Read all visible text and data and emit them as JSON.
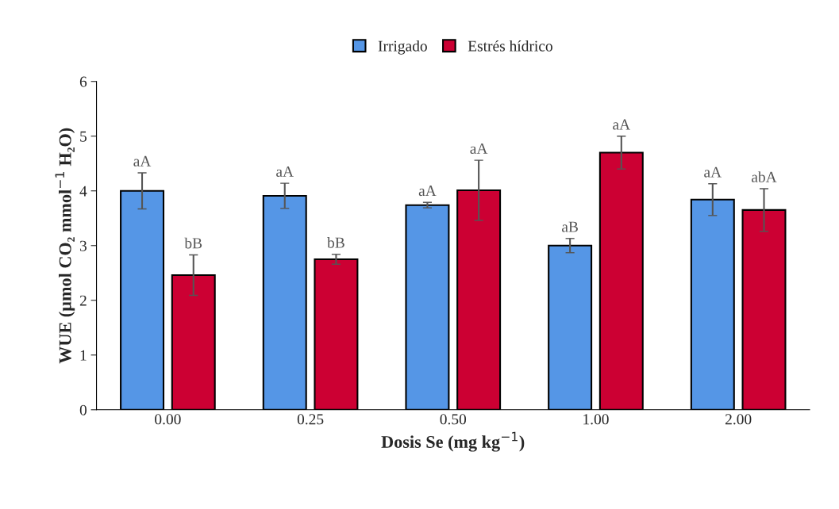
{
  "chart_data": {
    "type": "bar",
    "categories": [
      "0.00",
      "0.25",
      "0.50",
      "1.00",
      "2.00"
    ],
    "series": [
      {
        "name": "Irrigado",
        "color": "#5596e6",
        "values": [
          4.0,
          3.91,
          3.74,
          3.0,
          3.84
        ],
        "value_labels": [
          "aA",
          "aA",
          "aA",
          "aB",
          "aA"
        ],
        "errors": [
          0.33,
          0.23,
          0.05,
          0.13,
          0.29
        ]
      },
      {
        "name": "Estrés hídrico",
        "color": "#cc0033",
        "values": [
          2.46,
          2.75,
          4.01,
          4.7,
          3.65
        ],
        "value_labels": [
          "bB",
          "bB",
          "aA",
          "aA",
          "abA"
        ],
        "errors": [
          0.37,
          0.09,
          0.55,
          0.3,
          0.39
        ]
      }
    ],
    "xlabel": "Dosis Se (mg kg$^{−1}$)",
    "ylabel": "WUE (µmol CO₂ mmol$^{−1}$ H₂O)",
    "ylim": [
      0,
      6
    ],
    "yticks": [
      0,
      1,
      2,
      3,
      4,
      5,
      6
    ],
    "grid": false,
    "legend": "top"
  }
}
